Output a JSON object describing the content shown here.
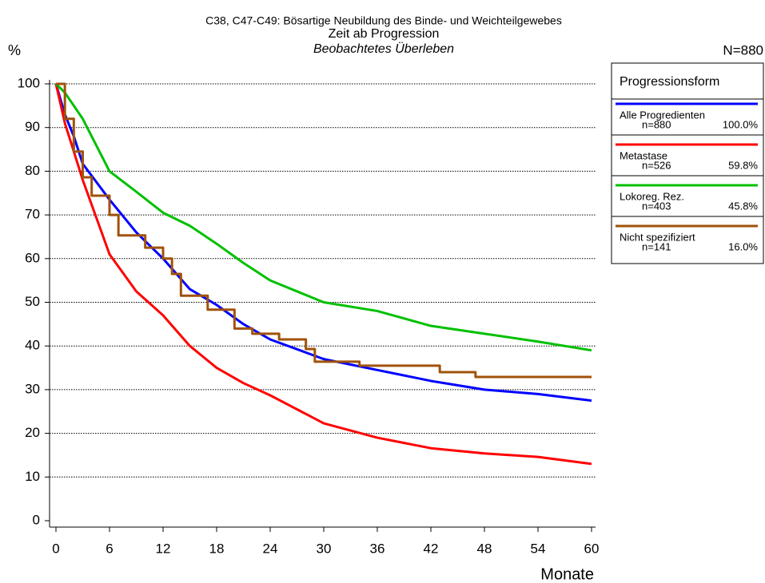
{
  "chart_data": {
    "type": "line",
    "title": "C38, C47-C49: Bösartige Neubildung des Binde- und Weichteilgewebes",
    "subtitle": "Zeit ab Progression",
    "subtitle2": "Beobachtetes Überleben",
    "y_label": "%",
    "x_label": "Monate",
    "total_label": "N=880",
    "legend_title": "Progressionsform",
    "xlim": [
      0,
      60
    ],
    "ylim": [
      0,
      100
    ],
    "xticks": [
      0,
      6,
      12,
      18,
      24,
      30,
      36,
      42,
      48,
      54,
      60
    ],
    "yticks": [
      0,
      10,
      20,
      30,
      40,
      50,
      60,
      70,
      80,
      90,
      100
    ],
    "grid": true,
    "series": [
      {
        "name": "Alle Progredienten",
        "n_label": "n=880",
        "share_label": "100.0%",
        "color": "#0000ff",
        "step": false,
        "x": [
          0,
          1,
          2,
          3,
          6,
          9,
          12,
          15,
          18,
          21,
          24,
          30,
          36,
          42,
          48,
          54,
          60
        ],
        "values": [
          100,
          93,
          88,
          81.7,
          73.5,
          66,
          60,
          53,
          49.4,
          45,
          41.5,
          37,
          34.5,
          32,
          30,
          29,
          27.5
        ]
      },
      {
        "name": "Metastase",
        "n_label": "n=526",
        "share_label": "59.8%",
        "color": "#ff0000",
        "step": false,
        "x": [
          0,
          1,
          3,
          6,
          9,
          12,
          15,
          18,
          21,
          24,
          30,
          36,
          42,
          48,
          54,
          60
        ],
        "values": [
          100,
          91,
          78,
          61,
          52.5,
          47,
          40,
          35,
          31.5,
          28.7,
          22.3,
          19,
          16.6,
          15.4,
          14.6,
          13
        ]
      },
      {
        "name": "Lokoreg. Rez.",
        "n_label": "n=403",
        "share_label": "45.8%",
        "color": "#00c000",
        "step": false,
        "x": [
          0,
          1,
          3,
          6,
          9,
          12,
          15,
          18,
          21,
          24,
          27,
          30,
          36,
          42,
          48,
          54,
          60
        ],
        "values": [
          100,
          98,
          92,
          80,
          75.3,
          70.5,
          67.5,
          63.4,
          59,
          55,
          52.5,
          50,
          48,
          44.6,
          42.8,
          41,
          39
        ]
      },
      {
        "name": "Nicht spezifiziert",
        "n_label": "n=141",
        "share_label": "16.0%",
        "color": "#a0520a",
        "step": true,
        "x": [
          0,
          1,
          2,
          3,
          4,
          6,
          7,
          10,
          12,
          13,
          14,
          17,
          20,
          22,
          25,
          28,
          29,
          34,
          43,
          47,
          60
        ],
        "values": [
          100,
          92,
          84.5,
          78.6,
          74.4,
          70,
          65.3,
          62.5,
          60,
          56.5,
          51.5,
          48.3,
          44,
          42.8,
          41.5,
          39.3,
          36.4,
          35.5,
          34,
          32.9,
          32.9
        ]
      }
    ]
  }
}
